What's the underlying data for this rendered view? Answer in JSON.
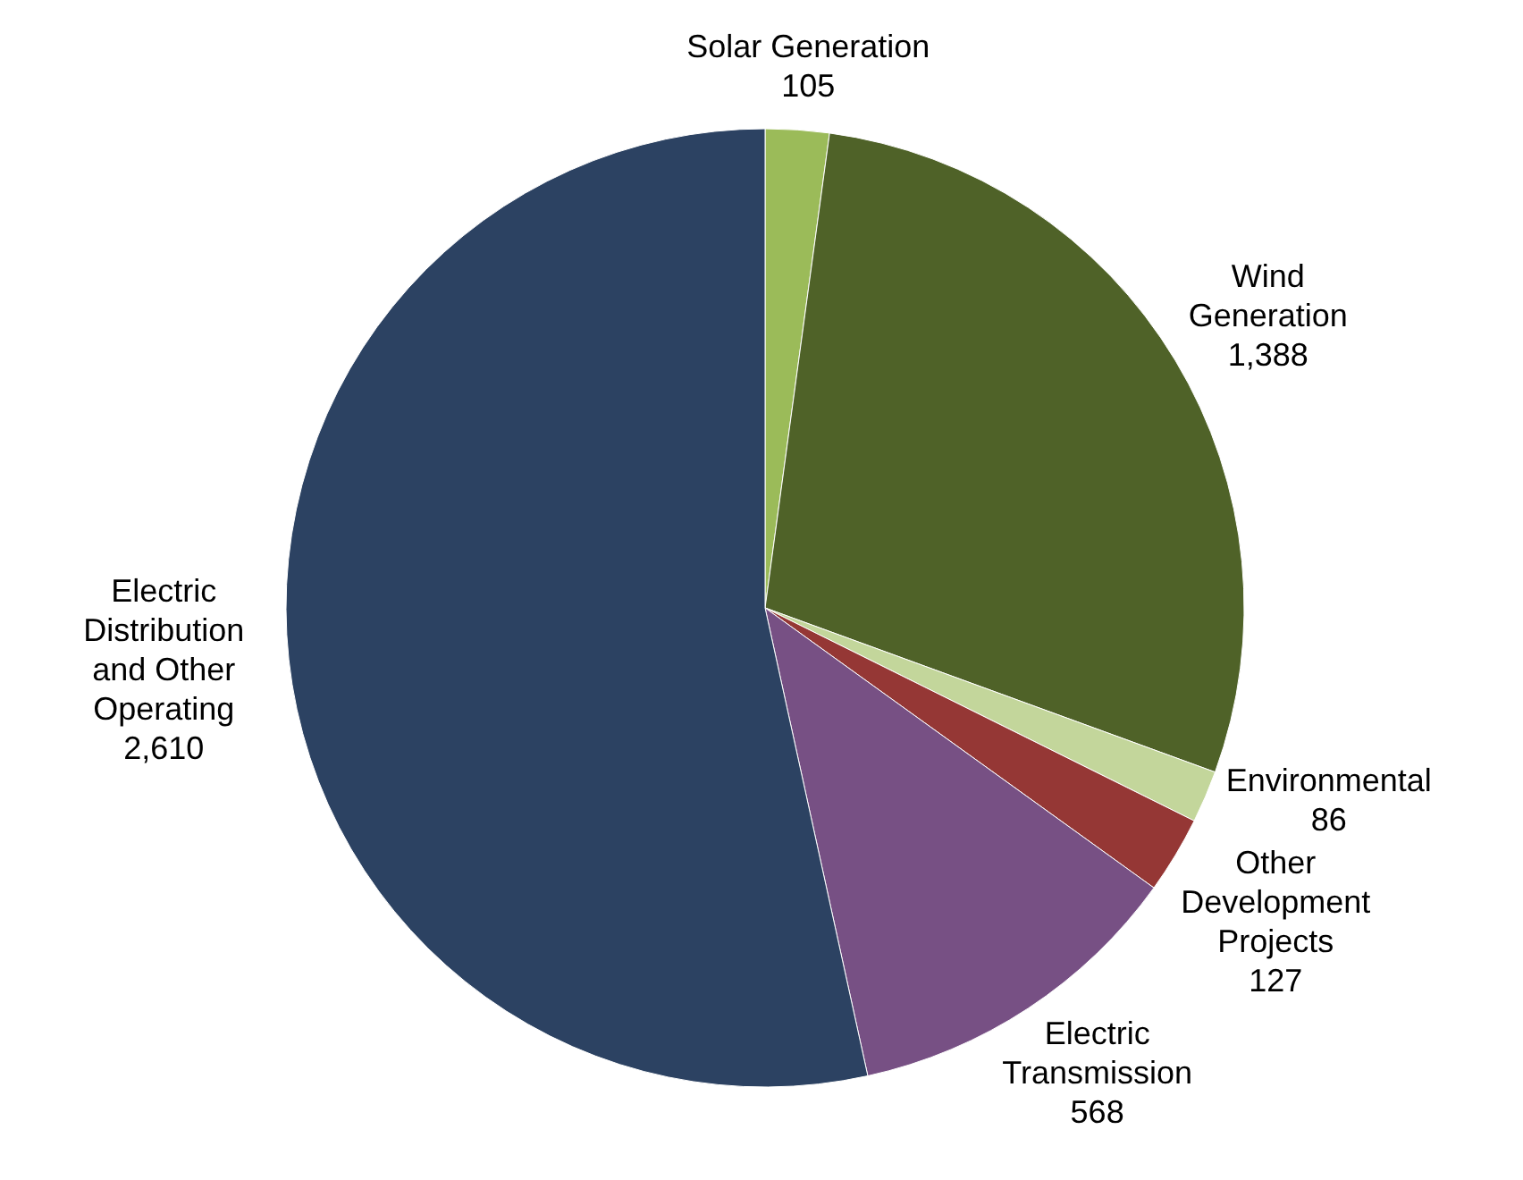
{
  "chart_data": {
    "type": "pie",
    "categories": [
      "Solar Generation",
      "Wind\nGeneration",
      "Environmental",
      "Other\nDevelopment\nProjects",
      "Electric\nTransmission",
      "Electric\nDistribution\nand Other\nOperating"
    ],
    "values": [
      105,
      1388,
      86,
      127,
      568,
      2610
    ],
    "value_labels": [
      "105",
      "1,388",
      "86",
      "127",
      "568",
      "2,610"
    ],
    "colors": [
      "#9bbb59",
      "#4f6228",
      "#c3d69b",
      "#953735",
      "#775084",
      "#2c4262"
    ]
  }
}
